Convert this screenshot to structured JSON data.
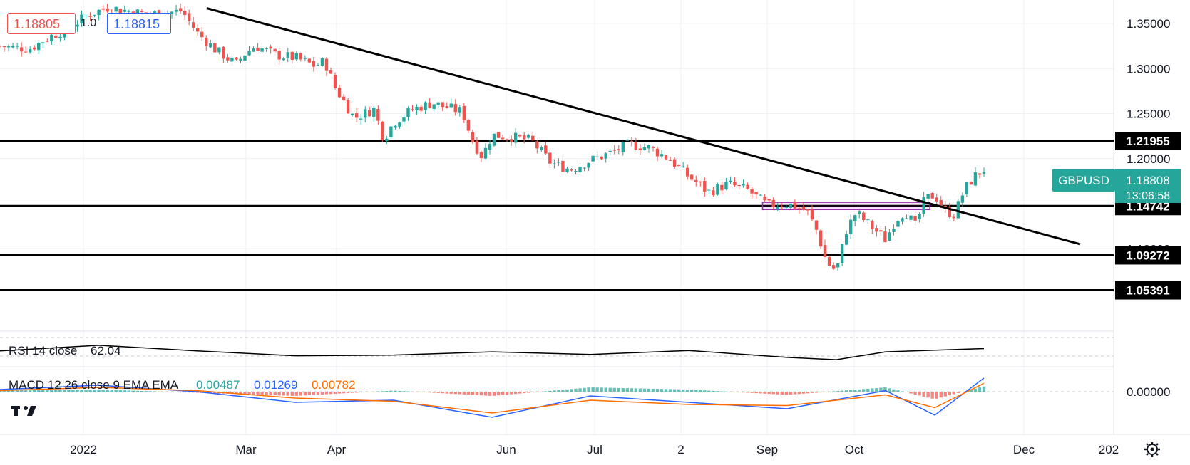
{
  "header": {
    "bid_price": "1.18805",
    "spread": "1.0",
    "ask_price": "1.18815"
  },
  "colors": {
    "up": "#26a69a",
    "down": "#ef5350",
    "macd_line": "#2962ff",
    "signal_line": "#ff6d00",
    "level_line": "#000000",
    "zone": "#9c27b0"
  },
  "chart_data": {
    "type": "candlestick",
    "symbol": "GBPUSD",
    "last_price": "1.18808",
    "countdown": "13:06:58",
    "price_axis": {
      "ticks": [
        "1.35000",
        "1.30000",
        "1.25000",
        "1.20000",
        "1.10000"
      ],
      "ylim": [
        1.035,
        1.375
      ]
    },
    "time_axis": {
      "labels": [
        "2022",
        "Mar",
        "Apr",
        "Jun",
        "Jul",
        "2",
        "Sep",
        "Oct",
        "Dec",
        "202"
      ]
    },
    "horizontal_levels": [
      {
        "label": "1.21955",
        "value": 1.21955
      },
      {
        "label": "1.14742",
        "value": 1.14742
      },
      {
        "label": "1.09272",
        "value": 1.09272
      },
      {
        "label": "1.05391",
        "value": 1.05391
      }
    ],
    "trendline": {
      "start": 1.367,
      "end": 1.105
    },
    "zone": {
      "low": 1.1435,
      "high": 1.1515
    },
    "close_path": [
      [
        0.0,
        1.325
      ],
      [
        0.03,
        1.322
      ],
      [
        0.05,
        1.335
      ],
      [
        0.07,
        1.345
      ],
      [
        0.09,
        1.36
      ],
      [
        0.11,
        1.368
      ],
      [
        0.13,
        1.364
      ],
      [
        0.15,
        1.36
      ],
      [
        0.17,
        1.362
      ],
      [
        0.185,
        1.364
      ],
      [
        0.2,
        1.34
      ],
      [
        0.22,
        1.32
      ],
      [
        0.24,
        1.305
      ],
      [
        0.25,
        1.318
      ],
      [
        0.26,
        1.325
      ],
      [
        0.28,
        1.315
      ],
      [
        0.3,
        1.312
      ],
      [
        0.32,
        1.303
      ],
      [
        0.33,
        1.308
      ],
      [
        0.34,
        1.28
      ],
      [
        0.36,
        1.245
      ],
      [
        0.38,
        1.255
      ],
      [
        0.39,
        1.222
      ],
      [
        0.4,
        1.24
      ],
      [
        0.42,
        1.255
      ],
      [
        0.44,
        1.262
      ],
      [
        0.45,
        1.258
      ],
      [
        0.47,
        1.252
      ],
      [
        0.48,
        1.22
      ],
      [
        0.49,
        1.202
      ],
      [
        0.5,
        1.226
      ],
      [
        0.52,
        1.224
      ],
      [
        0.54,
        1.22
      ],
      [
        0.56,
        1.195
      ],
      [
        0.58,
        1.188
      ],
      [
        0.6,
        1.198
      ],
      [
        0.62,
        1.206
      ],
      [
        0.64,
        1.216
      ],
      [
        0.66,
        1.212
      ],
      [
        0.68,
        1.2
      ],
      [
        0.7,
        1.18
      ],
      [
        0.72,
        1.163
      ],
      [
        0.74,
        1.172
      ],
      [
        0.76,
        1.165
      ],
      [
        0.78,
        1.148
      ],
      [
        0.8,
        1.15
      ],
      [
        0.82,
        1.142
      ],
      [
        0.83,
        1.12
      ],
      [
        0.84,
        1.085
      ],
      [
        0.85,
        1.075
      ],
      [
        0.86,
        1.12
      ],
      [
        0.87,
        1.14
      ],
      [
        0.88,
        1.13
      ],
      [
        0.89,
        1.12
      ],
      [
        0.9,
        1.11
      ],
      [
        0.91,
        1.132
      ],
      [
        0.92,
        1.142
      ],
      [
        0.93,
        1.125
      ],
      [
        0.94,
        1.155
      ],
      [
        0.95,
        1.16
      ],
      [
        0.96,
        1.142
      ],
      [
        0.97,
        1.138
      ],
      [
        0.98,
        1.165
      ],
      [
        0.99,
        1.18
      ],
      [
        1.0,
        1.188
      ]
    ],
    "candle_count": 230,
    "rsi": {
      "label": "RSI 14 close",
      "value": "62.04",
      "path": [
        [
          0,
          55
        ],
        [
          0.1,
          72
        ],
        [
          0.2,
          55
        ],
        [
          0.3,
          40
        ],
        [
          0.4,
          42
        ],
        [
          0.5,
          52
        ],
        [
          0.6,
          44
        ],
        [
          0.7,
          56
        ],
        [
          0.8,
          35
        ],
        [
          0.85,
          28
        ],
        [
          0.9,
          52
        ],
        [
          1.0,
          62
        ]
      ]
    },
    "macd": {
      "label": "MACD 12 26 close 9 EMA EMA",
      "histogram_value": "0.00487",
      "macd_value": "0.01269",
      "signal_value": "0.00782",
      "zero_label": "0.00000",
      "macd_path": [
        [
          0,
          0.002
        ],
        [
          0.1,
          0.006
        ],
        [
          0.2,
          0.0
        ],
        [
          0.3,
          -0.01
        ],
        [
          0.4,
          -0.008
        ],
        [
          0.5,
          -0.024
        ],
        [
          0.6,
          -0.004
        ],
        [
          0.7,
          -0.01
        ],
        [
          0.8,
          -0.016
        ],
        [
          0.9,
          0.001
        ],
        [
          0.95,
          -0.022
        ],
        [
          1.0,
          0.0127
        ]
      ],
      "signal_path": [
        [
          0,
          0.001
        ],
        [
          0.1,
          0.004
        ],
        [
          0.2,
          0.001
        ],
        [
          0.3,
          -0.006
        ],
        [
          0.4,
          -0.009
        ],
        [
          0.5,
          -0.02
        ],
        [
          0.6,
          -0.008
        ],
        [
          0.7,
          -0.012
        ],
        [
          0.8,
          -0.013
        ],
        [
          0.9,
          -0.003
        ],
        [
          0.95,
          -0.015
        ],
        [
          1.0,
          0.0078
        ]
      ],
      "hist_path": [
        [
          0,
          0.001
        ],
        [
          0.1,
          0.002
        ],
        [
          0.2,
          -0.001
        ],
        [
          0.3,
          -0.004
        ],
        [
          0.4,
          0.001
        ],
        [
          0.5,
          -0.004
        ],
        [
          0.6,
          0.004
        ],
        [
          0.7,
          0.002
        ],
        [
          0.8,
          -0.003
        ],
        [
          0.9,
          0.004
        ],
        [
          0.95,
          -0.007
        ],
        [
          1.0,
          0.0049
        ]
      ]
    }
  }
}
